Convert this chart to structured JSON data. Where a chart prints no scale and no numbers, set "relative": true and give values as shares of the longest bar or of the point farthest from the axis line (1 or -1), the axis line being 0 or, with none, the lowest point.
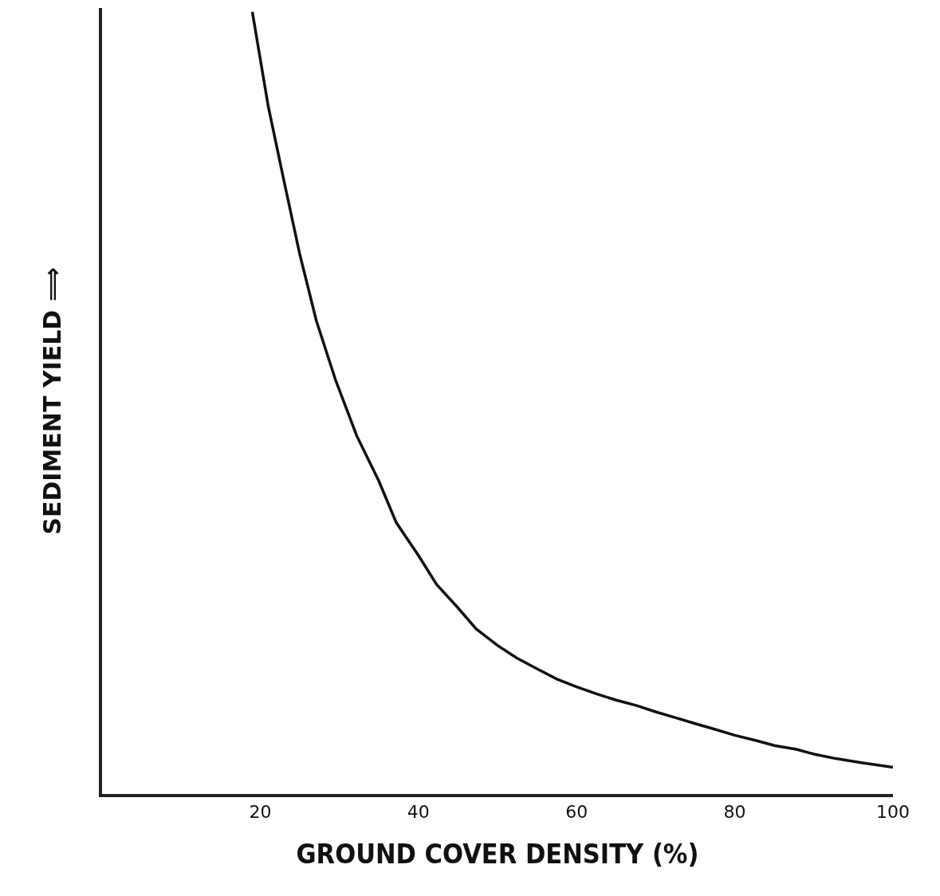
{
  "chart_data": {
    "type": "line",
    "relative": true,
    "xlabel": "GROUND COVER DENSITY (%)",
    "ylabel": "SEDIMENT YIELD ⟹",
    "xlim": [
      0,
      100
    ],
    "xticks": [
      20,
      40,
      60,
      80,
      100
    ],
    "grid": false,
    "marker": "none",
    "line_style": "solid",
    "series": [
      {
        "color": "#111111",
        "x": [
          19,
          20,
          21,
          23,
          25,
          27.1,
          29.5,
          32.2,
          35,
          37.2,
          40,
          42.3,
          45,
          47.3,
          50,
          52.4,
          55,
          57.5,
          60,
          62.5,
          65,
          67.6,
          70,
          72.7,
          75,
          77.7,
          80,
          82.8,
          85,
          87.8,
          90,
          92.9,
          96,
          100
        ],
        "values": [
          1,
          0.94,
          0.88,
          0.784,
          0.69,
          0.605,
          0.53,
          0.458,
          0.4,
          0.347,
          0.305,
          0.268,
          0.238,
          0.211,
          0.19,
          0.174,
          0.16,
          0.147,
          0.137,
          0.128,
          0.12,
          0.113,
          0.105,
          0.097,
          0.09,
          0.082,
          0.075,
          0.068,
          0.062,
          0.057,
          0.051,
          0.045,
          0.04,
          0.034
        ]
      }
    ]
  }
}
